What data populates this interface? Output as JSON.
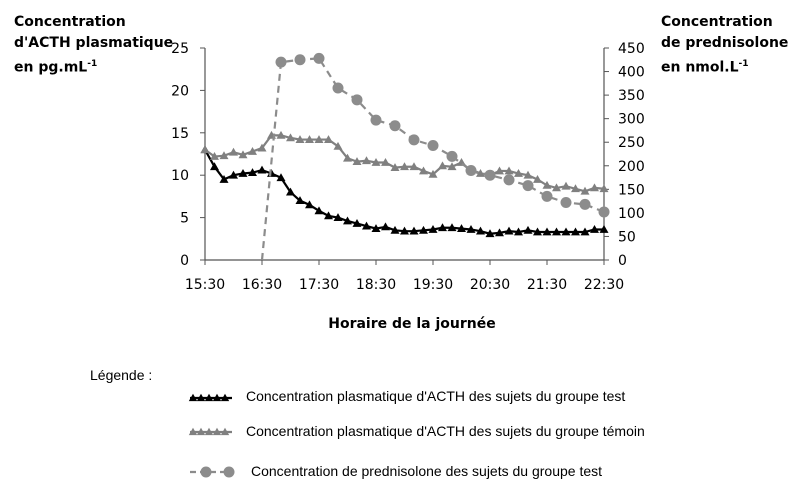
{
  "chart_data": {
    "type": "line",
    "x_label": "Horaire de la journée",
    "x_ticks": [
      "15:30",
      "16:30",
      "17:30",
      "18:30",
      "19:30",
      "20:30",
      "21:30",
      "22:30"
    ],
    "y_left": {
      "label_line1": "Concentration",
      "label_line2": "d'ACTH plasmatique",
      "label_line3": "en pg.mL",
      "label_exp": "-1",
      "range": [
        0,
        25
      ],
      "ticks": [
        0,
        5,
        10,
        15,
        20,
        25
      ]
    },
    "y_right": {
      "label_line1": "Concentration",
      "label_line2": "de prednisolone",
      "label_line3": "en nmol.L",
      "label_exp": "-1",
      "range": [
        0,
        450
      ],
      "ticks": [
        0,
        50,
        100,
        150,
        200,
        250,
        300,
        350,
        400,
        450
      ]
    },
    "x_range_hours": [
      15.5,
      22.5
    ],
    "series": [
      {
        "name": "Concentration plasmatique d'ACTH des sujets du groupe test",
        "axis": "left",
        "marker": "triangle",
        "color": "#000000",
        "dashed": false,
        "x": [
          "15:30",
          "15:40",
          "15:50",
          "16:00",
          "16:10",
          "16:20",
          "16:30",
          "16:40",
          "16:50",
          "17:00",
          "17:10",
          "17:20",
          "17:30",
          "17:40",
          "17:50",
          "18:00",
          "18:10",
          "18:20",
          "18:30",
          "18:40",
          "18:50",
          "19:00",
          "19:10",
          "19:20",
          "19:30",
          "19:40",
          "19:50",
          "20:00",
          "20:10",
          "20:20",
          "20:30",
          "20:40",
          "20:50",
          "21:00",
          "21:10",
          "21:20",
          "21:30",
          "21:40",
          "21:50",
          "22:00",
          "22:10",
          "22:20",
          "22:30"
        ],
        "y": [
          13,
          11,
          9.5,
          10,
          10.2,
          10.3,
          10.6,
          10.2,
          9.7,
          8,
          7,
          6.5,
          5.8,
          5.2,
          5,
          4.6,
          4.3,
          4,
          3.7,
          3.9,
          3.5,
          3.4,
          3.4,
          3.5,
          3.6,
          3.8,
          3.8,
          3.7,
          3.6,
          3.4,
          3.1,
          3.2,
          3.4,
          3.3,
          3.5,
          3.3,
          3.3,
          3.3,
          3.3,
          3.3,
          3.3,
          3.6,
          3.6
        ]
      },
      {
        "name": "Concentration plasmatique d'ACTH des sujets du groupe témoin",
        "axis": "left",
        "marker": "triangle",
        "color": "#808080",
        "dashed": false,
        "x": [
          "15:30",
          "15:40",
          "15:50",
          "16:00",
          "16:10",
          "16:20",
          "16:30",
          "16:40",
          "16:50",
          "17:00",
          "17:10",
          "17:20",
          "17:30",
          "17:40",
          "17:50",
          "18:00",
          "18:10",
          "18:20",
          "18:30",
          "18:40",
          "18:50",
          "19:00",
          "19:10",
          "19:20",
          "19:30",
          "19:40",
          "19:50",
          "20:00",
          "20:10",
          "20:20",
          "20:30",
          "20:40",
          "20:50",
          "21:00",
          "21:10",
          "21:20",
          "21:30",
          "21:40",
          "21:50",
          "22:00",
          "22:10",
          "22:20",
          "22:30"
        ],
        "y": [
          13,
          12.2,
          12.3,
          12.7,
          12.4,
          12.8,
          13.2,
          14.7,
          14.7,
          14.4,
          14.2,
          14.2,
          14.2,
          14.2,
          13.4,
          12,
          11.6,
          11.7,
          11.5,
          11.5,
          10.9,
          11,
          11,
          10.5,
          10.1,
          11.1,
          11,
          11.5,
          10.5,
          10.2,
          10,
          10.5,
          10.5,
          10.2,
          10,
          9.5,
          8.8,
          8.5,
          8.7,
          8.4,
          8.1,
          8.5,
          8.4
        ]
      },
      {
        "name": "Concentration de prednisolone des sujets du groupe test",
        "axis": "right",
        "marker": "circle",
        "color": "#8c8c8c",
        "dashed": true,
        "x": [
          "16:30",
          "16:50",
          "17:10",
          "17:30",
          "17:50",
          "18:10",
          "18:30",
          "18:50",
          "19:10",
          "19:30",
          "19:50",
          "20:10",
          "20:30",
          "20:50",
          "21:10",
          "21:30",
          "21:50",
          "22:10",
          "22:30"
        ],
        "y": [
          0,
          420,
          425,
          428,
          365,
          340,
          297,
          285,
          255,
          243,
          220,
          190,
          180,
          170,
          158,
          135,
          122,
          118,
          102
        ]
      }
    ]
  },
  "legend": {
    "title": "Légende :"
  }
}
